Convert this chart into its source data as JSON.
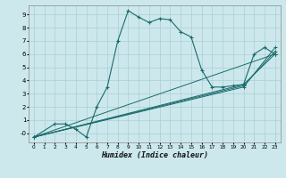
{
  "xlabel": "Humidex (Indice chaleur)",
  "background_color": "#cce8ec",
  "grid_color": "#aacfd4",
  "line_color": "#1a6b6b",
  "xlim": [
    -0.5,
    23.5
  ],
  "ylim": [
    -0.7,
    9.7
  ],
  "xticks": [
    0,
    1,
    2,
    3,
    4,
    5,
    6,
    7,
    8,
    9,
    10,
    11,
    12,
    13,
    14,
    15,
    16,
    17,
    18,
    19,
    20,
    21,
    22,
    23
  ],
  "yticks": [
    0,
    1,
    2,
    3,
    4,
    5,
    6,
    7,
    8,
    9
  ],
  "ytick_labels": [
    "-0",
    "1",
    "2",
    "3",
    "4",
    "5",
    "6",
    "7",
    "8",
    "9"
  ],
  "line1_x": [
    0,
    2,
    3,
    4,
    5,
    6,
    7,
    8,
    9,
    10,
    11,
    12,
    13,
    14,
    15,
    16,
    17,
    18,
    19,
    20,
    21,
    22,
    23
  ],
  "line1_y": [
    -0.3,
    0.7,
    0.7,
    0.3,
    -0.3,
    2.0,
    3.5,
    7.0,
    9.3,
    8.8,
    8.4,
    8.7,
    8.6,
    7.7,
    7.3,
    4.8,
    3.5,
    3.5,
    3.6,
    3.7,
    6.0,
    6.5,
    6.0
  ],
  "line2_x": [
    0,
    23
  ],
  "line2_y": [
    -0.3,
    6.0
  ],
  "line3_x": [
    0,
    20,
    23
  ],
  "line3_y": [
    -0.3,
    3.5,
    6.5
  ],
  "line4_x": [
    0,
    20,
    23
  ],
  "line4_y": [
    -0.3,
    3.7,
    6.0
  ],
  "line5_x": [
    0,
    20,
    23
  ],
  "line5_y": [
    -0.3,
    3.6,
    6.2
  ]
}
